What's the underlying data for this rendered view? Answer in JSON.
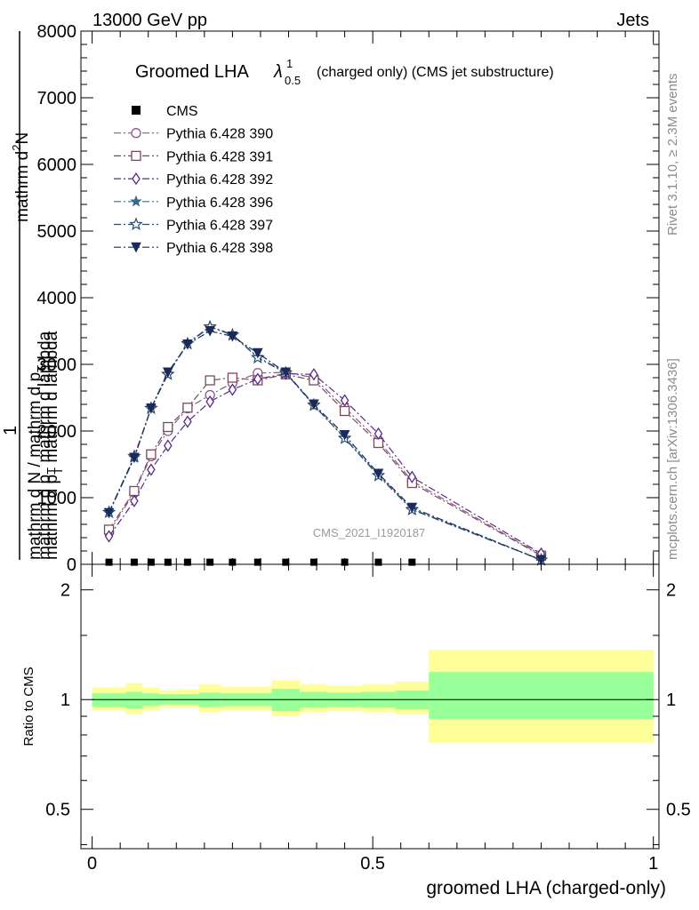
{
  "header": {
    "left": "13000 GeV pp",
    "right": "Jets"
  },
  "title": {
    "main": "Groomed LHA",
    "lambda": "λ",
    "sup": "1",
    "sub": "0.5",
    "rest": "(charged only) (CMS jet substructure)"
  },
  "watermark": "CMS_2021_I1920187",
  "side_text": {
    "rivet": "Rivet 3.1.10, ≥ 2.3M events",
    "mcplots": "mcplots.cern.ch [arXiv:1306.3436]"
  },
  "ylabel_main": {
    "line1": "mathrm d",
    "line1_sup": "2",
    "line1_tail": "N",
    "line2": "mathrm d p",
    "line2_sub": "T",
    "line2_tail": " mathrm d lambda",
    "one": "1",
    "den1": "mathrm d N / mathrm d p",
    "den1_sub": "T",
    "den2": "mathrm d p",
    "den2_sub": "T",
    "den2_tail": " mathrm d lambda"
  },
  "ylabel_ratio": "Ratio to CMS",
  "xlabel": "groomed LHA (charged-only)",
  "colors": {
    "band_inner": "#99ff99",
    "band_outer": "#ffff99",
    "cms": "#000000"
  },
  "chart_data": [
    {
      "type": "line",
      "panel": "main",
      "xlim": [
        -0.02,
        1.01
      ],
      "ylim": [
        0,
        8000
      ],
      "yticks": [
        0,
        1000,
        2000,
        3000,
        4000,
        5000,
        6000,
        7000,
        8000
      ],
      "ytick_labels": [
        "0",
        "1000",
        "2000",
        "3000",
        "4000",
        "5000",
        "6000",
        "7000",
        "8000"
      ],
      "legend_position": "top-left",
      "cms": {
        "name": "CMS",
        "x": [
          0.03,
          0.075,
          0.105,
          0.135,
          0.17,
          0.21,
          0.25,
          0.295,
          0.345,
          0.395,
          0.45,
          0.51,
          0.57
        ],
        "y": [
          5,
          5,
          5,
          5,
          5,
          5,
          5,
          5,
          5,
          5,
          5,
          5,
          5
        ]
      },
      "x": [
        0.03,
        0.075,
        0.105,
        0.135,
        0.17,
        0.21,
        0.25,
        0.295,
        0.345,
        0.395,
        0.45,
        0.51,
        0.57,
        0.8
      ],
      "series": [
        {
          "name": "Pythia 6.428 390",
          "color": "#8a5a8a",
          "marker": "circle-open",
          "values": [
            480,
            1080,
            1620,
            2000,
            2340,
            2540,
            2720,
            2870,
            2880,
            2800,
            2350,
            1860,
            1250,
            140
          ]
        },
        {
          "name": "Pythia 6.428 391",
          "color": "#7a4a5a",
          "marker": "square-open",
          "values": [
            520,
            1100,
            1650,
            2060,
            2350,
            2760,
            2800,
            2760,
            2850,
            2760,
            2300,
            1820,
            1220,
            130
          ]
        },
        {
          "name": "Pythia 6.428 392",
          "color": "#5a2a8a",
          "marker": "diamond-open",
          "values": [
            420,
            950,
            1420,
            1780,
            2140,
            2440,
            2620,
            2780,
            2860,
            2850,
            2460,
            1960,
            1310,
            160
          ]
        },
        {
          "name": "Pythia 6.428 396",
          "color": "#3a6a8a",
          "marker": "star-filled",
          "values": [
            780,
            1600,
            2350,
            2860,
            3320,
            3570,
            3450,
            3110,
            2880,
            2380,
            1900,
            1340,
            830,
            70
          ]
        },
        {
          "name": "Pythia 6.428 397",
          "color": "#2a4a6a",
          "marker": "star-open",
          "values": [
            780,
            1620,
            2340,
            2850,
            3310,
            3560,
            3440,
            3100,
            2870,
            2390,
            1890,
            1330,
            820,
            65
          ]
        },
        {
          "name": "Pythia 6.428 398",
          "color": "#1a2a5a",
          "marker": "triangle-down-filled",
          "values": [
            770,
            1600,
            2340,
            2880,
            3300,
            3500,
            3420,
            3170,
            2880,
            2400,
            1940,
            1360,
            850,
            65
          ]
        }
      ]
    },
    {
      "type": "area",
      "panel": "ratio",
      "xlim": [
        -0.02,
        1.01
      ],
      "ylim": [
        0.39,
        2.35
      ],
      "scale": "log",
      "yticks": [
        0.5,
        1,
        2
      ],
      "ytick_labels": [
        "0.5",
        "1",
        "2"
      ],
      "xticks": [
        0,
        0.5,
        1
      ],
      "xtick_labels": [
        "0",
        "0.5",
        "1"
      ],
      "reference": 1,
      "bins": [
        0,
        0.06,
        0.09,
        0.12,
        0.15,
        0.19,
        0.23,
        0.27,
        0.32,
        0.37,
        0.42,
        0.48,
        0.54,
        0.6,
        1.0
      ],
      "band_inner_lo": [
        0.955,
        0.945,
        0.96,
        0.97,
        0.97,
        0.955,
        0.96,
        0.96,
        0.93,
        0.95,
        0.955,
        0.95,
        0.94,
        0.885
      ],
      "band_inner_hi": [
        1.04,
        1.05,
        1.04,
        1.035,
        1.035,
        1.045,
        1.04,
        1.04,
        1.07,
        1.05,
        1.045,
        1.05,
        1.06,
        1.19
      ],
      "band_outer_lo": [
        0.935,
        0.91,
        0.935,
        0.95,
        0.95,
        0.925,
        0.935,
        0.935,
        0.9,
        0.925,
        0.93,
        0.925,
        0.91,
        0.76
      ],
      "band_outer_hi": [
        1.08,
        1.11,
        1.08,
        1.06,
        1.065,
        1.1,
        1.085,
        1.085,
        1.13,
        1.1,
        1.09,
        1.1,
        1.12,
        1.37
      ]
    }
  ]
}
